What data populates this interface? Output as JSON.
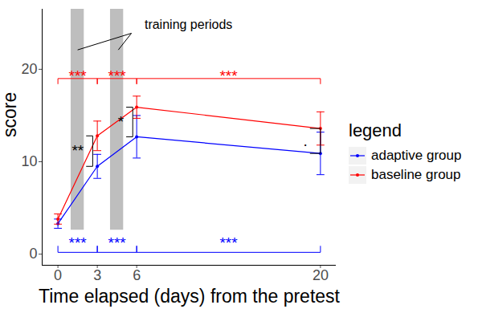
{
  "chart_data": {
    "type": "line",
    "x_label": "Time elapsed (days) from the pretest",
    "y_label": "score",
    "x": [
      0,
      3,
      6,
      20
    ],
    "xlim": [
      -1.2,
      21.2
    ],
    "xticks": [
      0,
      3,
      6,
      20
    ],
    "ylim": [
      -1.2,
      26.5
    ],
    "yticks": [
      0,
      10,
      20
    ],
    "grid": false,
    "legend": "right",
    "legend_title": "legend",
    "marker": "circle",
    "series": [
      {
        "name": "adaptive group",
        "color": "#0000ff",
        "values": [
          3.3,
          9.5,
          12.7,
          10.9
        ],
        "errors": [
          0.5,
          1.3,
          2.3,
          2.3
        ]
      },
      {
        "name": "baseline group",
        "color": "#ff0000",
        "values": [
          3.8,
          12.8,
          15.9,
          13.6
        ],
        "errors": [
          0.55,
          1.6,
          1.2,
          1.8
        ]
      }
    ],
    "shaded_periods": [
      {
        "from": 1,
        "to": 2,
        "low": 2.6,
        "high": 26.5
      },
      {
        "from": 4,
        "to": 5,
        "low": 2.6,
        "high": 26.5
      }
    ],
    "annotation": {
      "text": "training periods",
      "x": 6.6,
      "y": 24.8,
      "from": {
        "x": 5.6,
        "y": 23.9
      },
      "pointers": [
        {
          "x": 1.5,
          "y": 22.1
        },
        {
          "x": 4.6,
          "y": 22.1
        }
      ]
    },
    "brackets": [
      {
        "from": 0,
        "to": 3,
        "y": 19,
        "tip": 18.4,
        "label": "***",
        "color": "#ff0000"
      },
      {
        "from": 3,
        "to": 6,
        "y": 19,
        "tip": 18.4,
        "label": "***",
        "color": "#ff0000"
      },
      {
        "from": 6,
        "to": 20,
        "y": 19,
        "tip": 18.4,
        "label": "***",
        "color": "#ff0000"
      },
      {
        "from": 0,
        "to": 3,
        "y": 0.2,
        "tip": 0.9,
        "label": "***",
        "color": "#0000ff"
      },
      {
        "from": 3,
        "to": 6,
        "y": 0.2,
        "tip": 0.9,
        "label": "***",
        "color": "#0000ff"
      },
      {
        "from": 6,
        "to": 20,
        "y": 0.2,
        "tip": 0.9,
        "label": "***",
        "color": "#0000ff"
      }
    ],
    "group_brackets": [
      {
        "x": 2.65,
        "tip": 2.15,
        "from": 9.5,
        "to": 12.8,
        "label": "**"
      },
      {
        "x": 5.7,
        "tip": 5.2,
        "from": 12.7,
        "to": 15.9,
        "label": "*"
      },
      {
        "x": 20,
        "tip": 19.2,
        "from": 10.9,
        "to": 13.6,
        "label": "."
      }
    ]
  }
}
